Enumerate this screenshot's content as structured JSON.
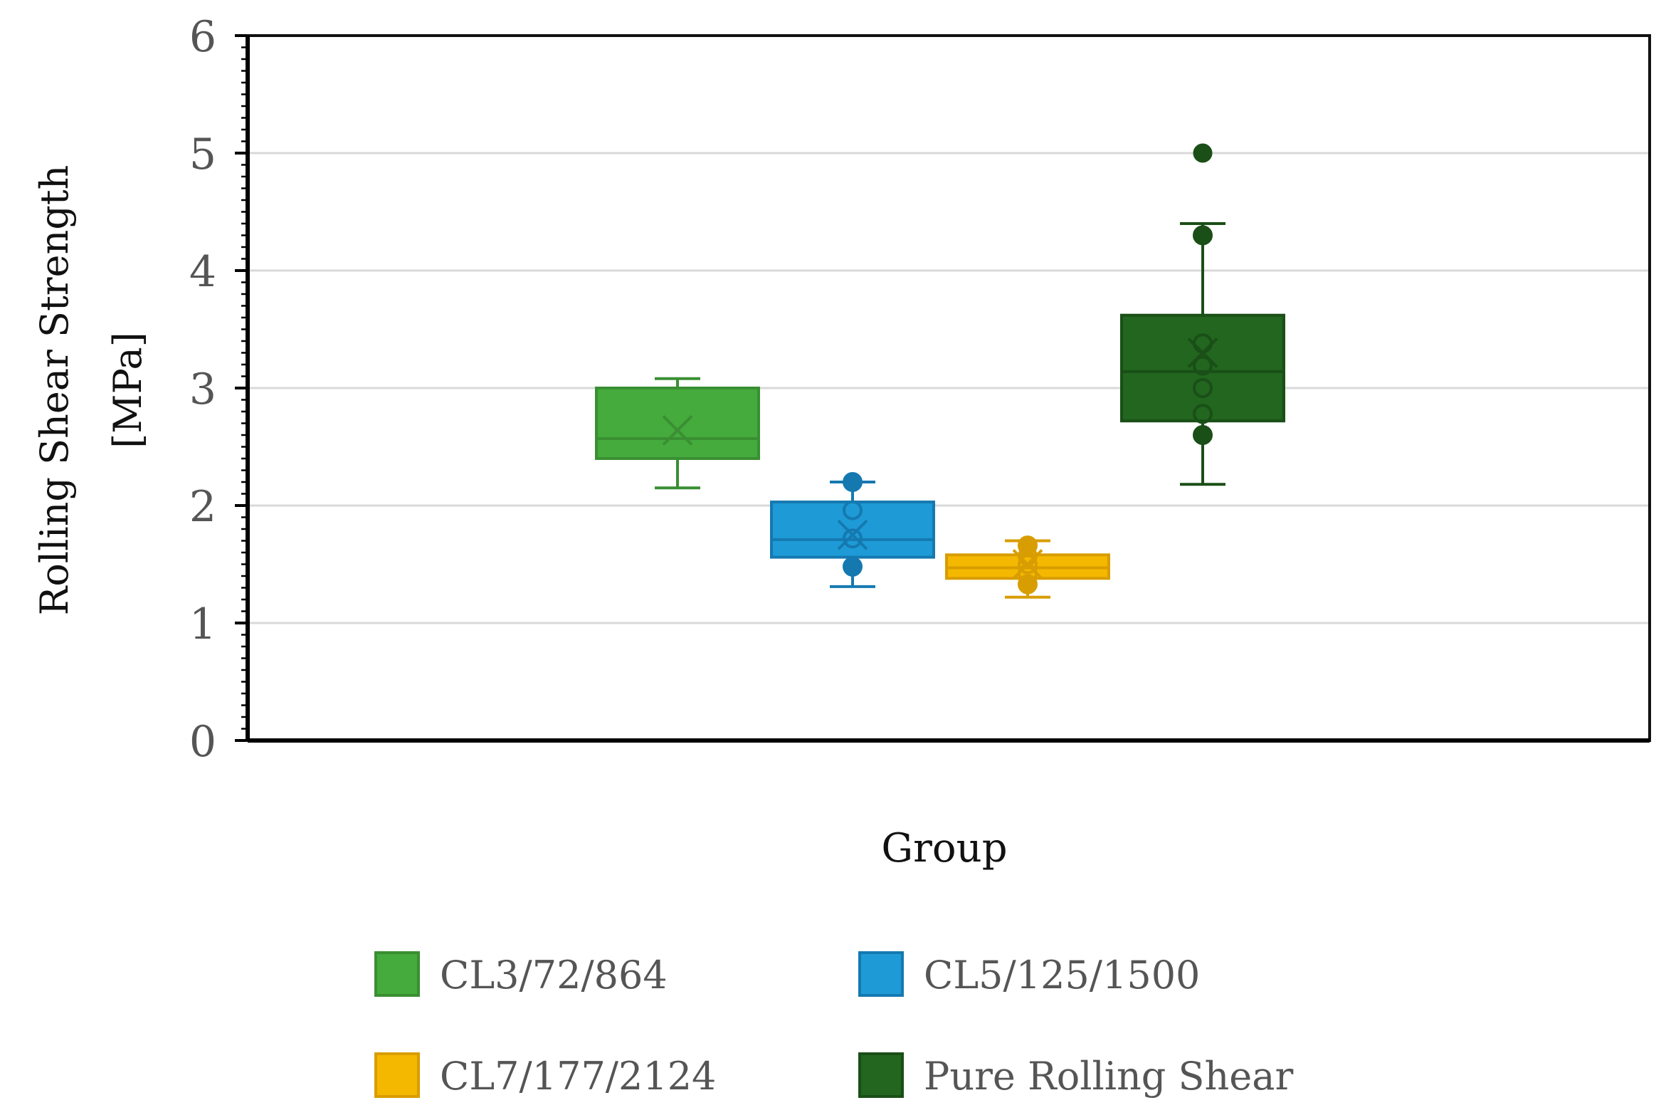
{
  "chart_data": {
    "type": "box",
    "xlabel": "Group",
    "ylabel_line1": "Rolling Shear Strength",
    "ylabel_line2": "[MPa]",
    "ylim": [
      0,
      6
    ],
    "yticks": [
      0,
      1,
      2,
      3,
      4,
      5,
      6
    ],
    "ytick_labels": [
      "0",
      "1",
      "2",
      "3",
      "4",
      "5",
      "6"
    ],
    "grid": true,
    "legend_position": "bottom",
    "series": [
      {
        "name": "CL3/72/864",
        "color": "#44ab3c",
        "edge": "#3a8f33",
        "whisker_low": 2.15,
        "q1": 2.4,
        "median": 2.57,
        "q3": 3.0,
        "whisker_high": 3.08,
        "mean": 2.64,
        "points": []
      },
      {
        "name": "CL5/125/1500",
        "color": "#1e9bd7",
        "edge": "#1579b0",
        "whisker_low": 1.31,
        "q1": 1.56,
        "median": 1.71,
        "q3": 2.03,
        "whisker_high": 2.2,
        "mean": 1.75,
        "points": [
          1.48,
          1.72,
          1.96,
          2.2
        ]
      },
      {
        "name": "CL7/177/2124",
        "color": "#f5b800",
        "edge": "#d89d00",
        "whisker_low": 1.22,
        "q1": 1.38,
        "median": 1.47,
        "q3": 1.58,
        "whisker_high": 1.7,
        "mean": 1.5,
        "points": [
          1.33,
          1.42,
          1.5,
          1.57,
          1.66
        ]
      },
      {
        "name": "Pure Rolling Shear",
        "color": "#22661f",
        "edge": "#1a4f17",
        "whisker_low": 2.18,
        "q1": 2.72,
        "median": 3.14,
        "q3": 3.62,
        "whisker_high": 4.4,
        "mean": 3.3,
        "points": [
          2.6,
          2.78,
          3.0,
          3.19,
          3.38,
          4.3
        ],
        "outliers": [
          5.0
        ]
      }
    ]
  }
}
